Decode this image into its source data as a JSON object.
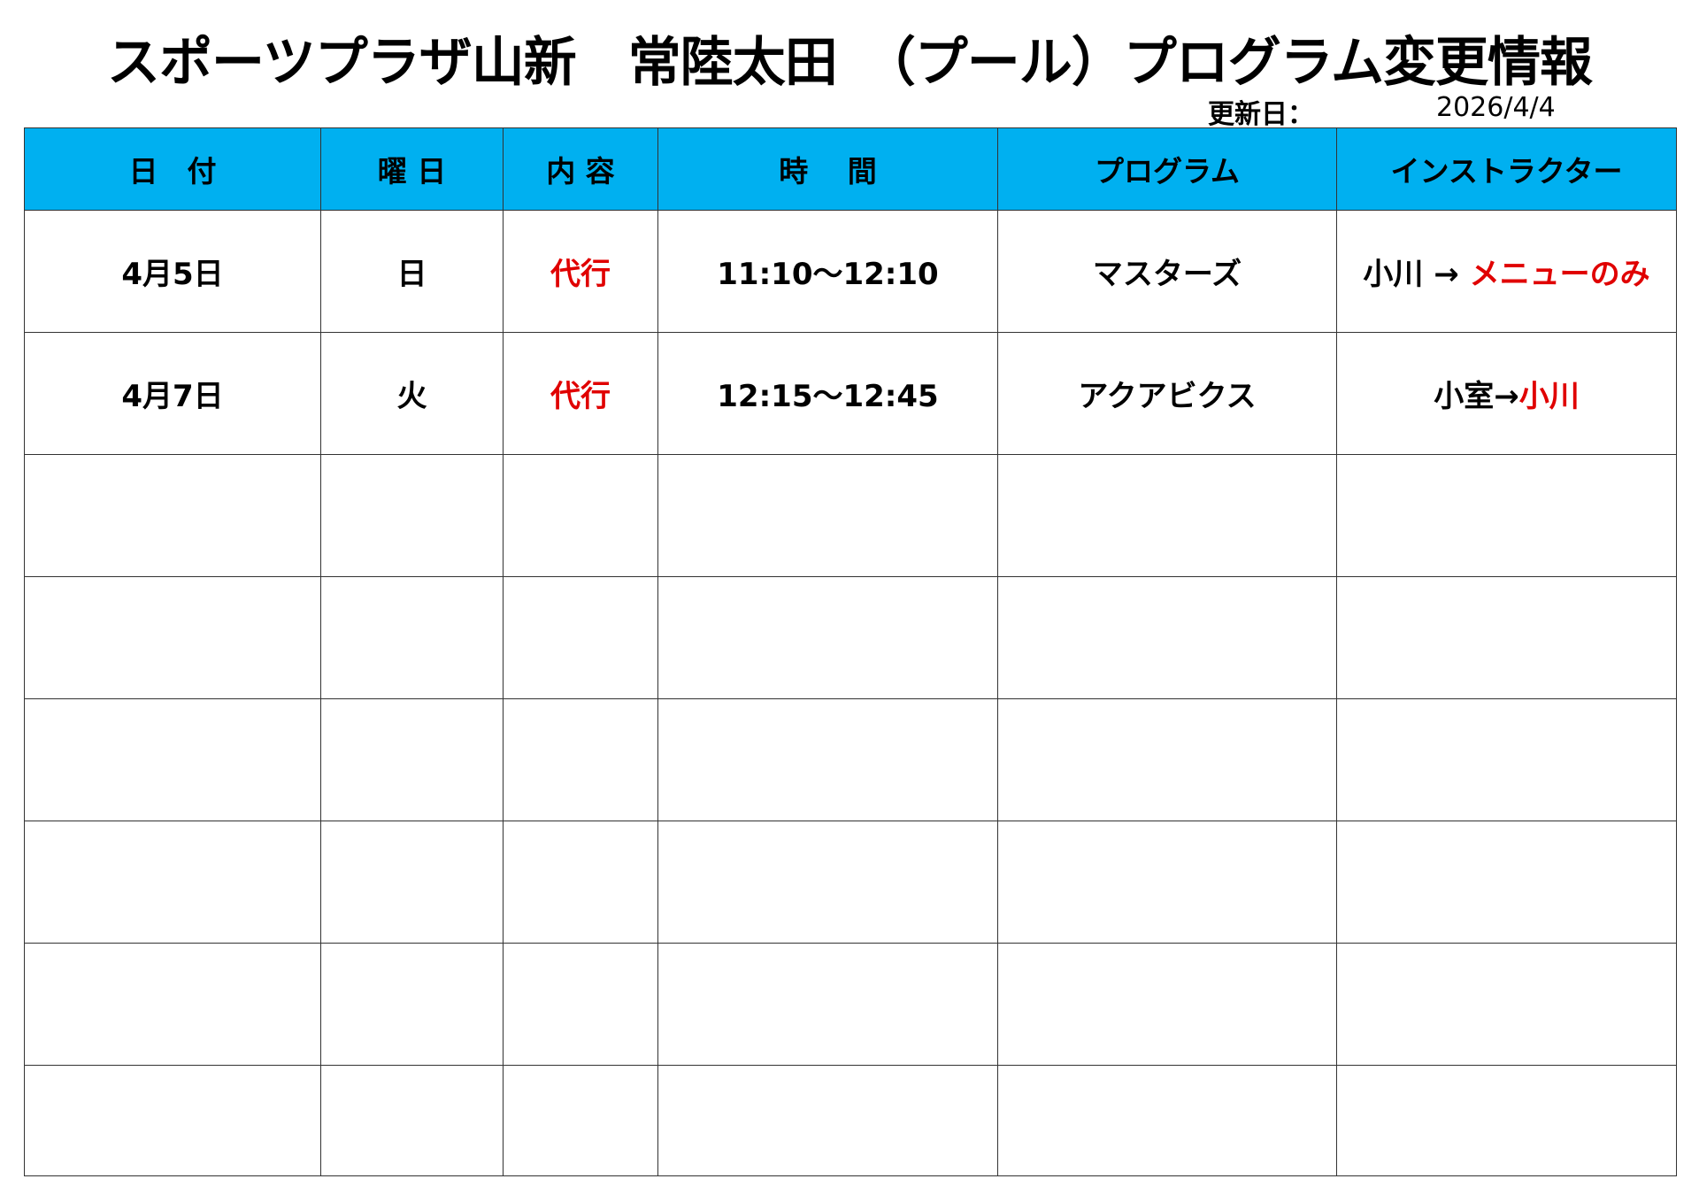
{
  "title": "スポーツプラザ山新　常陸太田　（プール）プログラム変更情報",
  "updated": {
    "label": "更新日：",
    "value": "2026/4/4"
  },
  "colors": {
    "header_bg": "#00b0f0",
    "accent_red": "#e00000"
  },
  "table": {
    "headers": [
      "日　付",
      "曜 日",
      "内 容",
      "時　 間",
      "プログラム",
      "インストラクター"
    ],
    "rows": [
      {
        "date": "4月5日",
        "weekday": "日",
        "type": "代行",
        "time": "11:10～12:10",
        "program": "マスターズ",
        "instructor_from": "小川 → ",
        "instructor_to": "メニューのみ"
      },
      {
        "date": "4月7日",
        "weekday": "火",
        "type": "代行",
        "time": "12:15～12:45",
        "program": "アクアビクス",
        "instructor_from": "小室→",
        "instructor_to": "小川"
      }
    ]
  }
}
